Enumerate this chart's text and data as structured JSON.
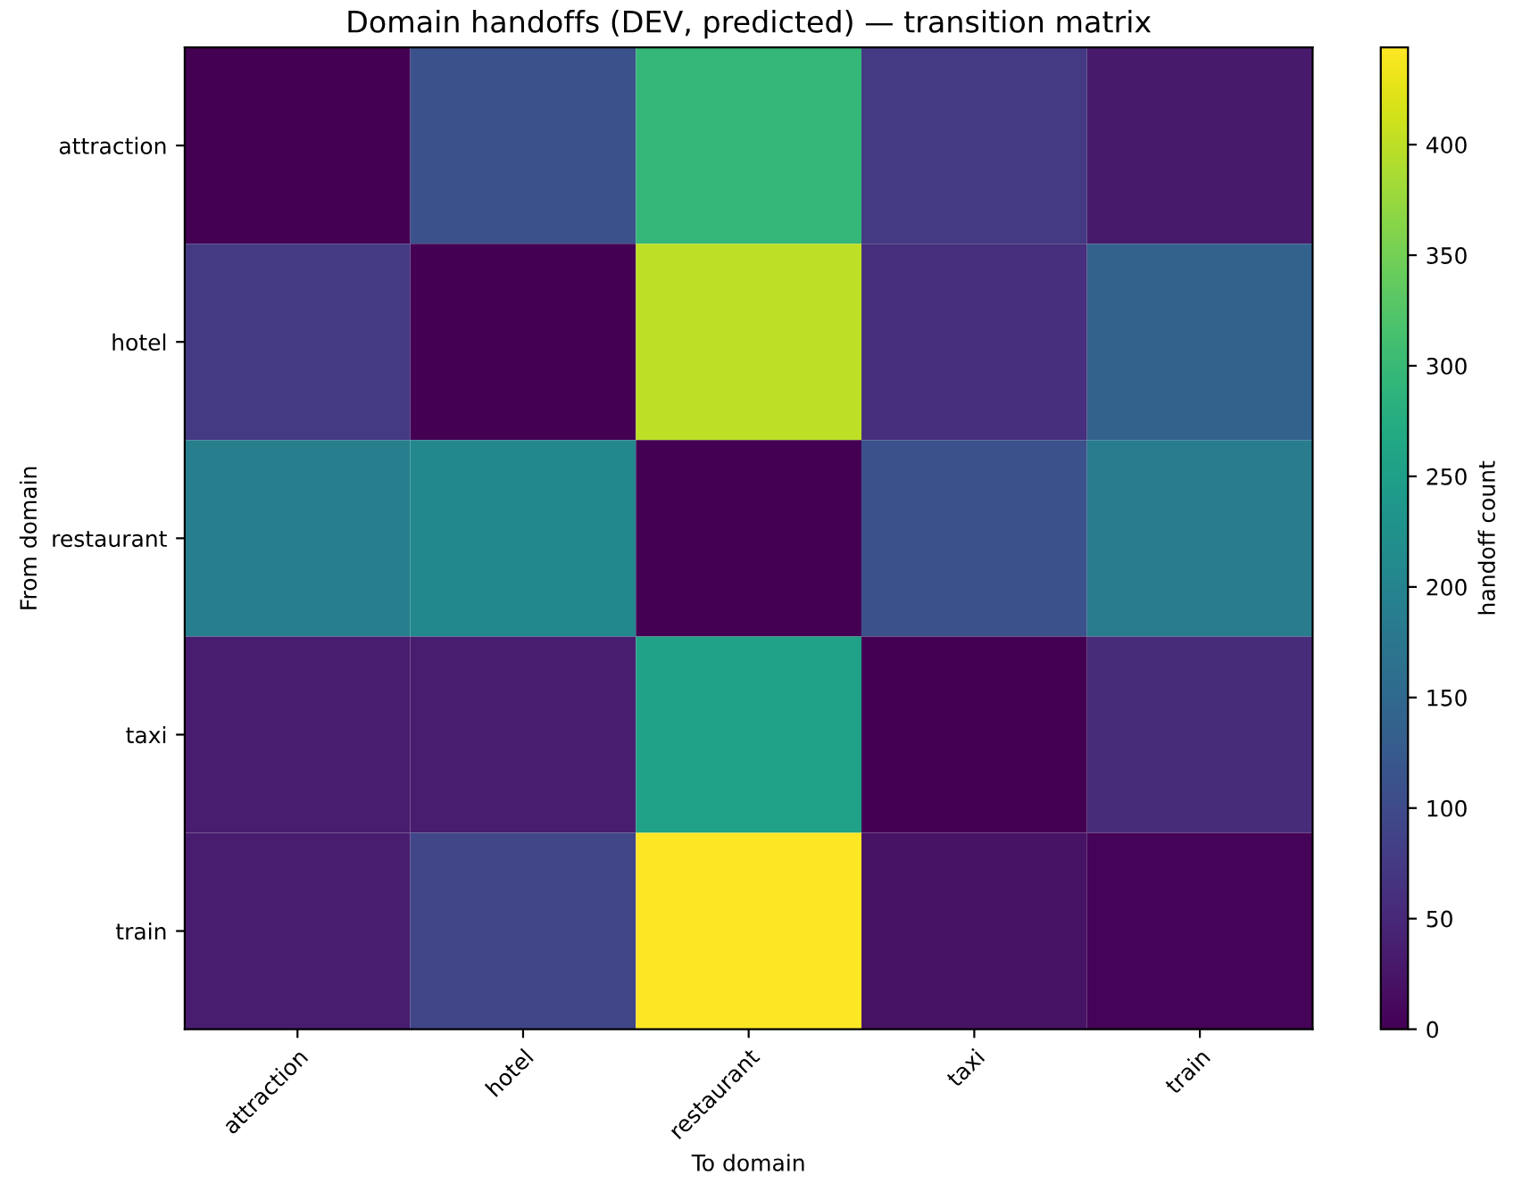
{
  "chart_data": {
    "type": "heatmap",
    "title": "Domain handoffs (DEV, predicted) — transition matrix",
    "xlabel": "To domain",
    "ylabel": "From domain",
    "clabel": "handoff count",
    "categories": [
      "attraction",
      "hotel",
      "restaurant",
      "taxi",
      "train"
    ],
    "y_categories": [
      "attraction",
      "hotel",
      "restaurant",
      "taxi",
      "train"
    ],
    "cells": [
      [
        0,
        110,
        295,
        75,
        30
      ],
      [
        75,
        0,
        400,
        60,
        138
      ],
      [
        190,
        208,
        0,
        110,
        185
      ],
      [
        35,
        35,
        255,
        0,
        55
      ],
      [
        35,
        93,
        444,
        22,
        5
      ]
    ],
    "clim": [
      0,
      444
    ],
    "cticks": [
      0,
      50,
      100,
      150,
      200,
      250,
      300,
      350,
      400
    ]
  }
}
